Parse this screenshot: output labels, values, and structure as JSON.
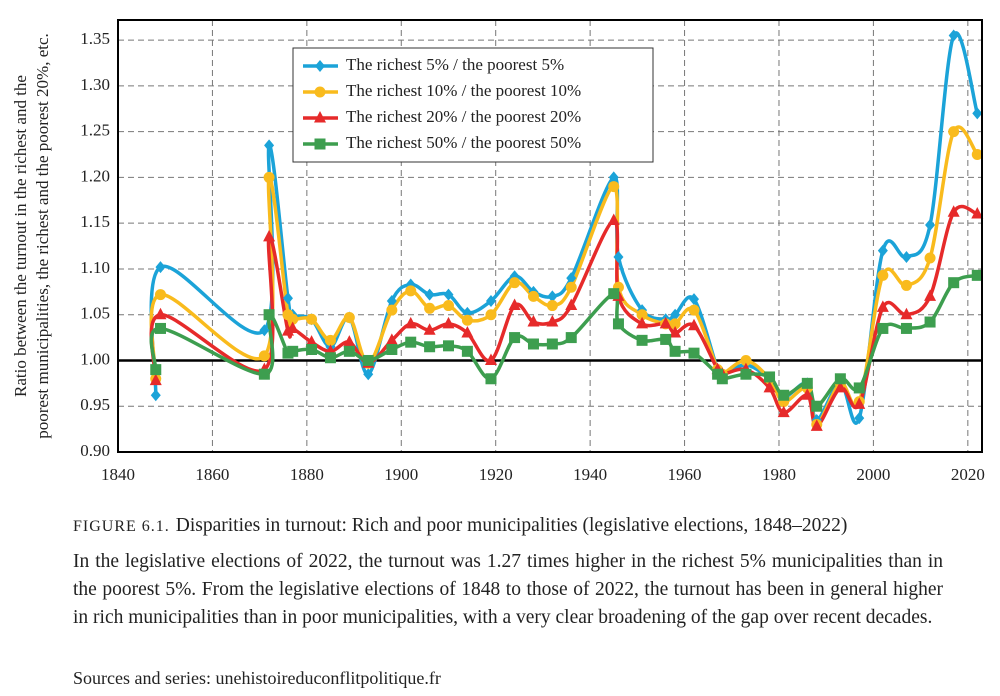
{
  "chart_data": {
    "type": "line",
    "ylabel": [
      "Ratio between the turnout in the richest and the",
      "poorest municipalities, the richest and the poorest 20%, etc."
    ],
    "x": [
      1848,
      1849,
      1871,
      1872,
      1876,
      1877,
      1881,
      1885,
      1889,
      1893,
      1898,
      1902,
      1906,
      1910,
      1914,
      1919,
      1924,
      1928,
      1932,
      1936,
      1945,
      1946,
      1951,
      1956,
      1958,
      1962,
      1967,
      1968,
      1973,
      1978,
      1981,
      1986,
      1988,
      1993,
      1997,
      2002,
      2007,
      2012,
      2017,
      2022
    ],
    "series": [
      {
        "name": "The richest 5% / the poorest 5%",
        "color": "#1ba3d8",
        "marker": "diamond",
        "values": [
          0.962,
          1.102,
          1.033,
          1.235,
          1.068,
          1.05,
          1.045,
          1.015,
          1.047,
          0.985,
          1.065,
          1.083,
          1.072,
          1.072,
          1.052,
          1.065,
          1.092,
          1.075,
          1.07,
          1.09,
          1.2,
          1.113,
          1.055,
          1.045,
          1.05,
          1.067,
          0.99,
          0.985,
          0.995,
          0.98,
          0.96,
          0.975,
          0.935,
          0.975,
          0.937,
          1.12,
          1.113,
          1.148,
          1.355,
          1.27
        ]
      },
      {
        "name": "The richest 10% / the poorest 10%",
        "color": "#f9bb1d",
        "marker": "circle",
        "values": [
          0.98,
          1.072,
          1.005,
          1.2,
          1.05,
          1.045,
          1.045,
          1.022,
          1.047,
          0.997,
          1.055,
          1.076,
          1.057,
          1.06,
          1.044,
          1.05,
          1.085,
          1.07,
          1.06,
          1.08,
          1.19,
          1.08,
          1.05,
          1.04,
          1.04,
          1.055,
          0.99,
          0.985,
          1.0,
          0.98,
          0.955,
          0.97,
          0.93,
          0.975,
          0.955,
          1.093,
          1.082,
          1.112,
          1.25,
          1.225
        ]
      },
      {
        "name": "The richest 20% / the poorest 20%",
        "color": "#e62a2a",
        "marker": "triangle",
        "values": [
          0.978,
          1.05,
          0.99,
          1.135,
          1.032,
          1.035,
          1.02,
          1.01,
          1.02,
          0.997,
          1.022,
          1.04,
          1.033,
          1.04,
          1.03,
          1.0,
          1.06,
          1.042,
          1.042,
          1.06,
          1.153,
          1.07,
          1.04,
          1.04,
          1.03,
          1.038,
          0.99,
          0.985,
          0.99,
          0.97,
          0.943,
          0.962,
          0.928,
          0.97,
          0.952,
          1.058,
          1.05,
          1.07,
          1.162,
          1.16
        ]
      },
      {
        "name": "The richest 50% / the poorest 50%",
        "color": "#3d9e4f",
        "marker": "square",
        "values": [
          0.99,
          1.035,
          0.985,
          1.05,
          1.008,
          1.01,
          1.012,
          1.003,
          1.01,
          1.0,
          1.012,
          1.02,
          1.015,
          1.016,
          1.01,
          0.98,
          1.025,
          1.018,
          1.018,
          1.025,
          1.073,
          1.04,
          1.022,
          1.023,
          1.01,
          1.008,
          0.985,
          0.98,
          0.985,
          0.982,
          0.962,
          0.975,
          0.95,
          0.98,
          0.97,
          1.035,
          1.035,
          1.042,
          1.085,
          1.093
        ]
      }
    ],
    "reference_line": 1,
    "xlim": [
      1840,
      2023
    ],
    "xticks": [
      1840,
      1860,
      1880,
      1900,
      1920,
      1940,
      1960,
      1980,
      2000,
      2020
    ],
    "ylim": [
      0.9,
      1.372
    ],
    "yticks": [
      {
        "value": 0.9,
        "label": "0.90"
      },
      0.95,
      {
        "value": 1,
        "label": "1.00"
      },
      1.05,
      {
        "value": 1.1,
        "label": "1.10"
      },
      1.15,
      {
        "value": 1.2,
        "label": "1.20"
      },
      1.25,
      {
        "value": 1.3,
        "label": "1.30"
      },
      1.35
    ],
    "grid": true,
    "legend": "top-center"
  },
  "caption": {
    "figure_number": "FIGURE 6.1.",
    "title": "Disparities in turnout: Rich and poor municipalities (legislative elections, 1848–2022)",
    "text": "In the legislative elections of 2022, the turnout was 1.27 times higher in the richest 5% municipalities than in the poorest 5%. From the legislative elections of 1848 to those of 2022, the turnout has been in general higher in rich municipalities than in poor municipalities, with a very clear broadening of the gap over recent decades.",
    "sources": "Sources and series: unehistoireduconflitpolitique.fr"
  }
}
